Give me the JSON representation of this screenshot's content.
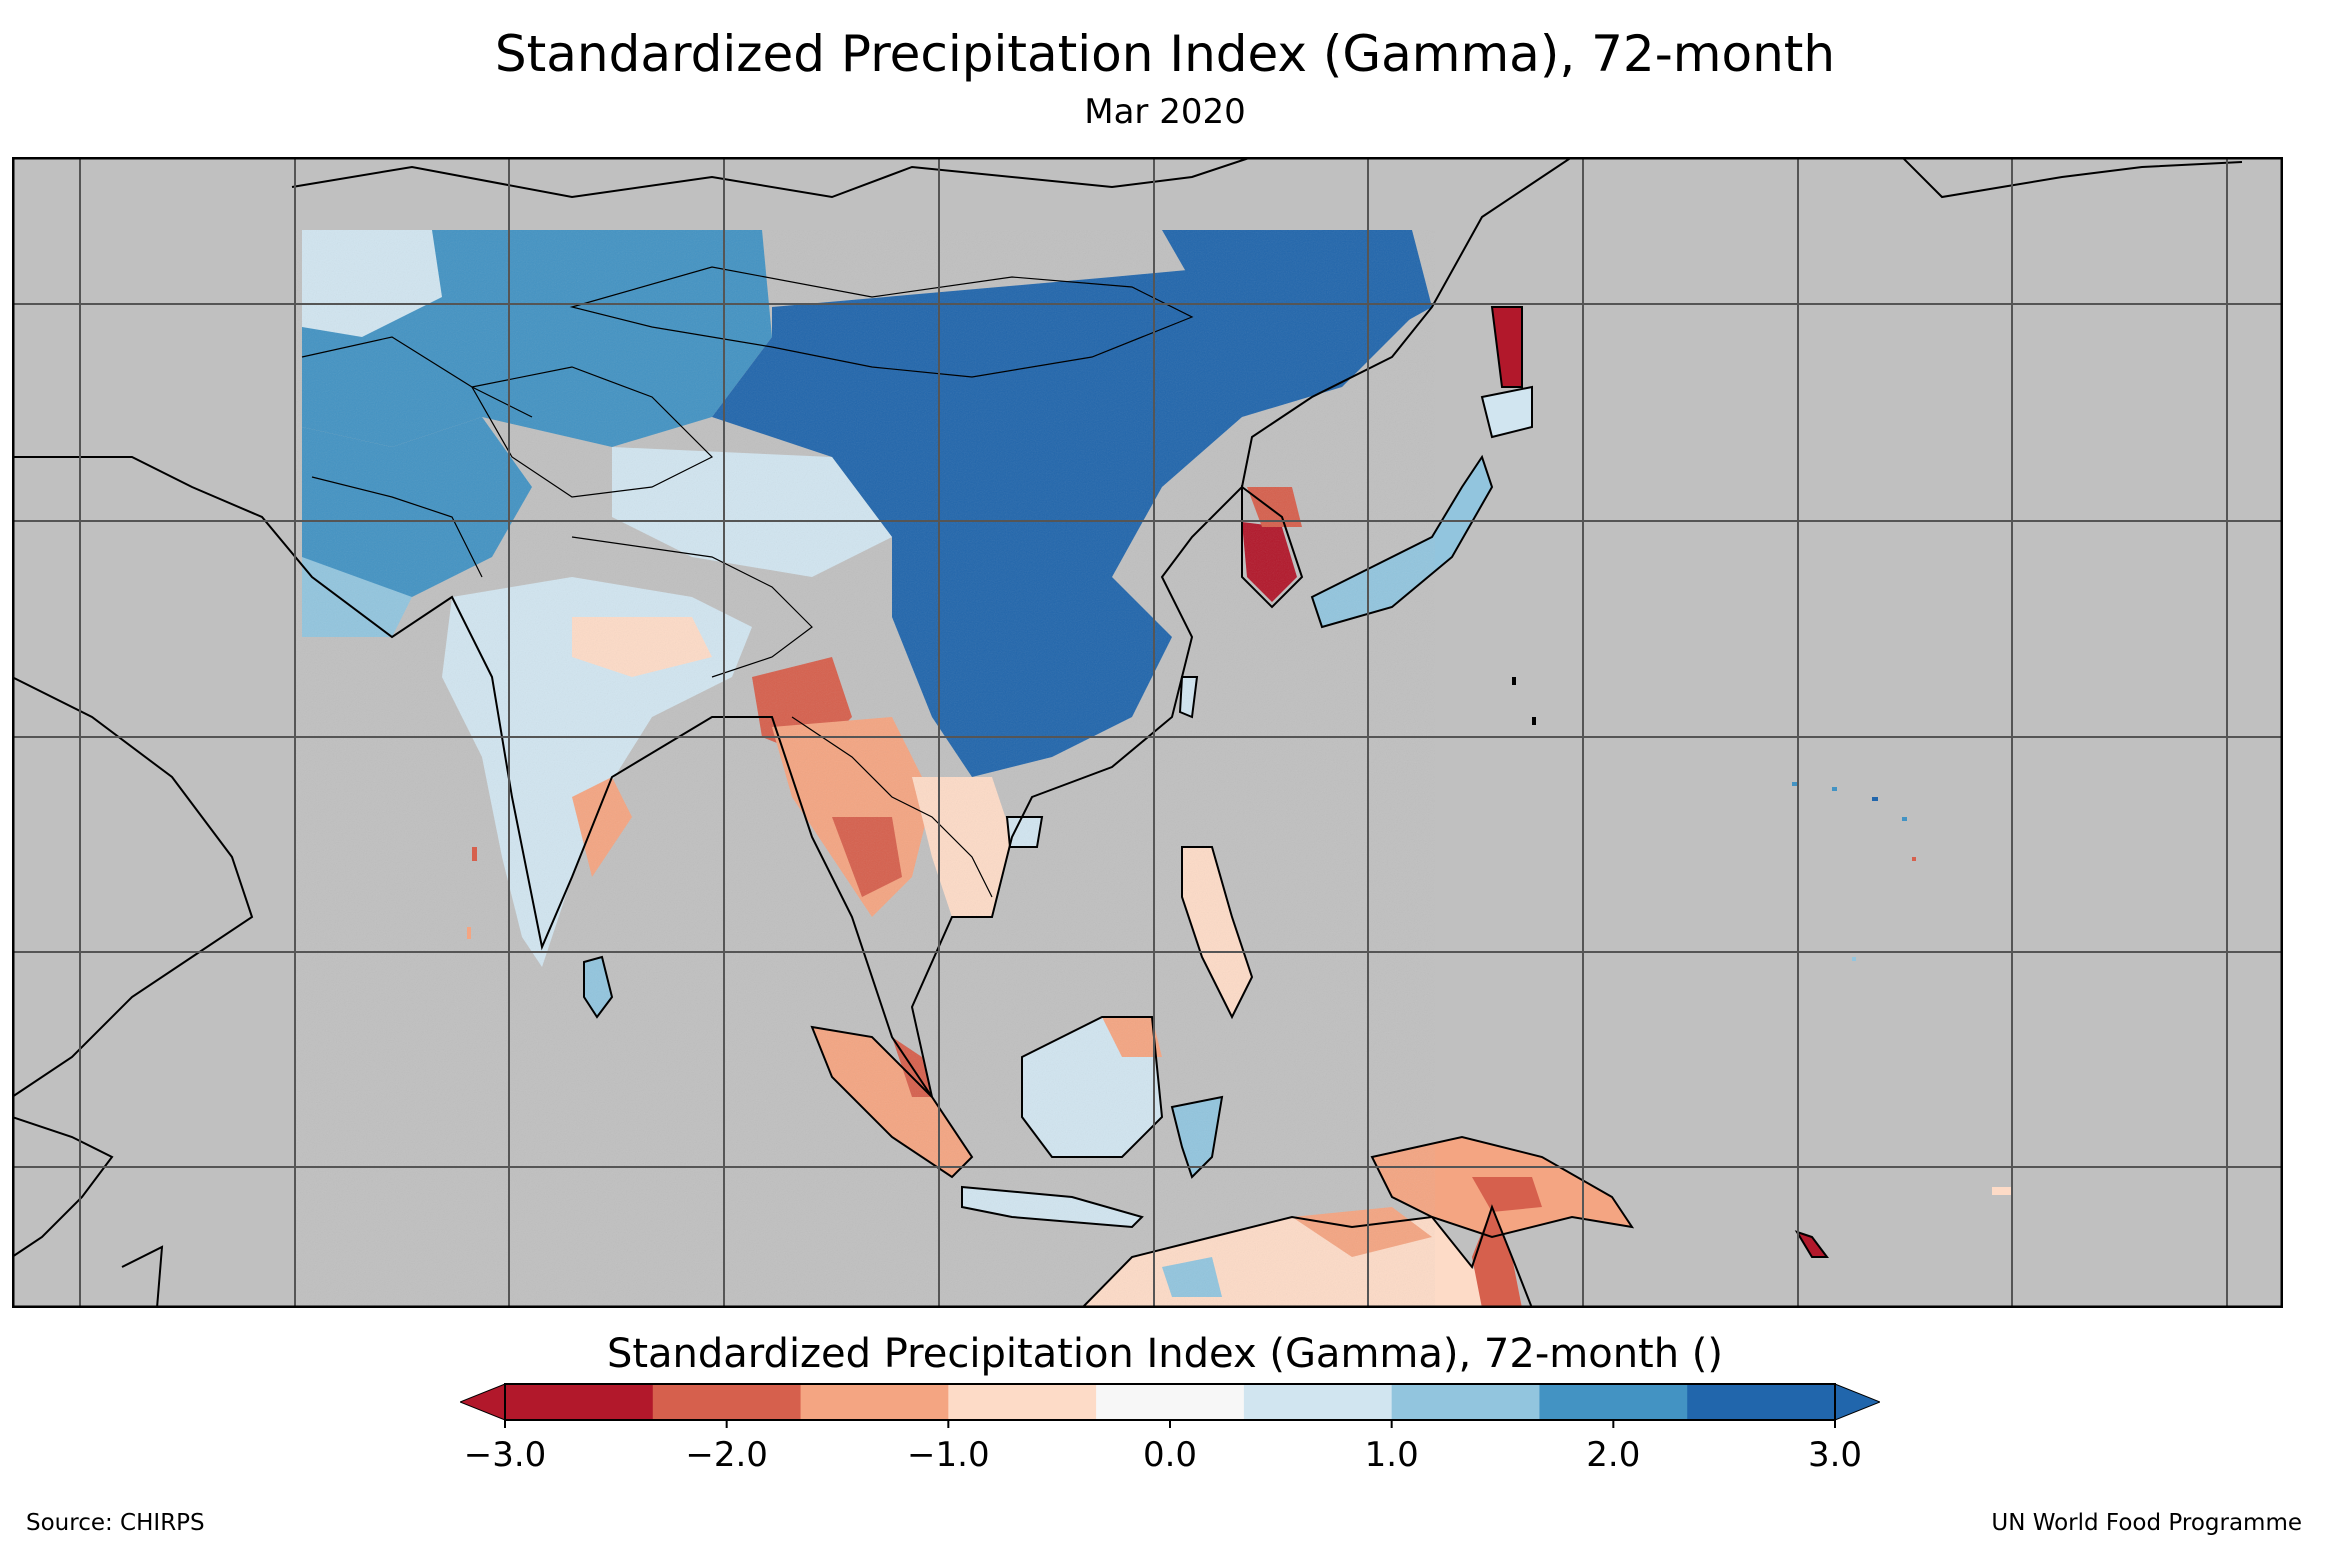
{
  "header": {
    "title": "Standardized Precipitation Index (Gamma), 72-month",
    "subtitle": "Mar 2020"
  },
  "legend": {
    "title": "Standardized Precipitation Index (Gamma), 72-month ()",
    "ticks": [
      "−3.0",
      "−2.0",
      "−1.0",
      "0.0",
      "1.0",
      "2.0",
      "3.0"
    ],
    "tick_values": [
      -3,
      -2,
      -1,
      0,
      1,
      2,
      3
    ],
    "colors": [
      "#b2182b",
      "#d6604d",
      "#f4a582",
      "#fddbc7",
      "#f7f7f7",
      "#d1e5f0",
      "#92c5de",
      "#4393c3",
      "#2166ac"
    ],
    "min_extend_color": "#b2182b",
    "max_extend_color": "#2166ac"
  },
  "map": {
    "background_color": "#c0c0c0",
    "grid_color": "#555555",
    "coast_color": "#000000",
    "region": "Asia-Pacific",
    "index": "SPI 72-month",
    "period": "Mar 2020"
  },
  "footer": {
    "source": "Source: CHIRPS",
    "credit": "UN World Food Programme"
  }
}
